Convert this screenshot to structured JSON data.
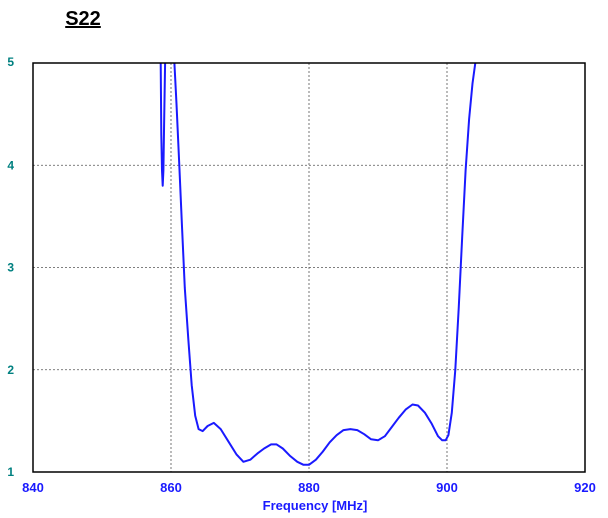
{
  "chart_data": {
    "type": "line",
    "title": "S22",
    "xlabel": "Frequency [MHz]",
    "ylabel": "",
    "xlim": [
      840,
      920
    ],
    "ylim": [
      1,
      5
    ],
    "x_ticks": [
      840,
      860,
      880,
      900,
      920
    ],
    "y_ticks": [
      1,
      2,
      3,
      4,
      5
    ],
    "x_tick_labels": [
      "840",
      "860",
      "880",
      "900",
      "920"
    ],
    "y_tick_labels": [
      "1",
      "2",
      "3",
      "4",
      "5"
    ],
    "grid": true,
    "grid_style": "dotted",
    "legend": "none",
    "series": [
      {
        "color": "#1a1aff",
        "segments": [
          [
            [
              858.5,
              5.0
            ],
            [
              858.6,
              4.3
            ],
            [
              858.7,
              3.95
            ],
            [
              858.8,
              3.8
            ],
            [
              858.9,
              3.95
            ],
            [
              859.0,
              4.4
            ],
            [
              859.15,
              5.0
            ]
          ],
          [
            [
              860.5,
              5.0
            ],
            [
              860.8,
              4.6
            ],
            [
              861.2,
              4.0
            ],
            [
              861.6,
              3.4
            ],
            [
              862.0,
              2.8
            ],
            [
              862.5,
              2.3
            ],
            [
              863.0,
              1.85
            ],
            [
              863.5,
              1.55
            ],
            [
              864.0,
              1.42
            ],
            [
              864.6,
              1.4
            ],
            [
              865.3,
              1.45
            ],
            [
              866.2,
              1.48
            ],
            [
              867.2,
              1.42
            ],
            [
              868.3,
              1.3
            ],
            [
              869.5,
              1.17
            ],
            [
              870.5,
              1.1
            ],
            [
              871.5,
              1.12
            ],
            [
              872.5,
              1.18
            ],
            [
              873.5,
              1.23
            ],
            [
              874.5,
              1.27
            ],
            [
              875.3,
              1.27
            ],
            [
              876.2,
              1.23
            ],
            [
              877.2,
              1.16
            ],
            [
              878.3,
              1.1
            ],
            [
              879.2,
              1.07
            ],
            [
              880.0,
              1.07
            ],
            [
              881.0,
              1.12
            ],
            [
              882.0,
              1.2
            ],
            [
              883.0,
              1.29
            ],
            [
              884.0,
              1.36
            ],
            [
              885.0,
              1.41
            ],
            [
              886.0,
              1.42
            ],
            [
              887.0,
              1.41
            ],
            [
              888.0,
              1.37
            ],
            [
              889.0,
              1.32
            ],
            [
              890.0,
              1.31
            ],
            [
              891.0,
              1.35
            ],
            [
              892.0,
              1.44
            ],
            [
              893.0,
              1.53
            ],
            [
              894.0,
              1.61
            ],
            [
              895.0,
              1.66
            ],
            [
              895.8,
              1.65
            ],
            [
              896.8,
              1.58
            ],
            [
              897.8,
              1.47
            ],
            [
              898.7,
              1.35
            ],
            [
              899.3,
              1.31
            ],
            [
              899.8,
              1.31
            ],
            [
              900.2,
              1.36
            ],
            [
              900.7,
              1.58
            ],
            [
              901.2,
              2.0
            ],
            [
              901.7,
              2.6
            ],
            [
              902.2,
              3.3
            ],
            [
              902.7,
              3.95
            ],
            [
              903.2,
              4.45
            ],
            [
              903.7,
              4.8
            ],
            [
              904.1,
              5.0
            ]
          ]
        ]
      }
    ]
  }
}
